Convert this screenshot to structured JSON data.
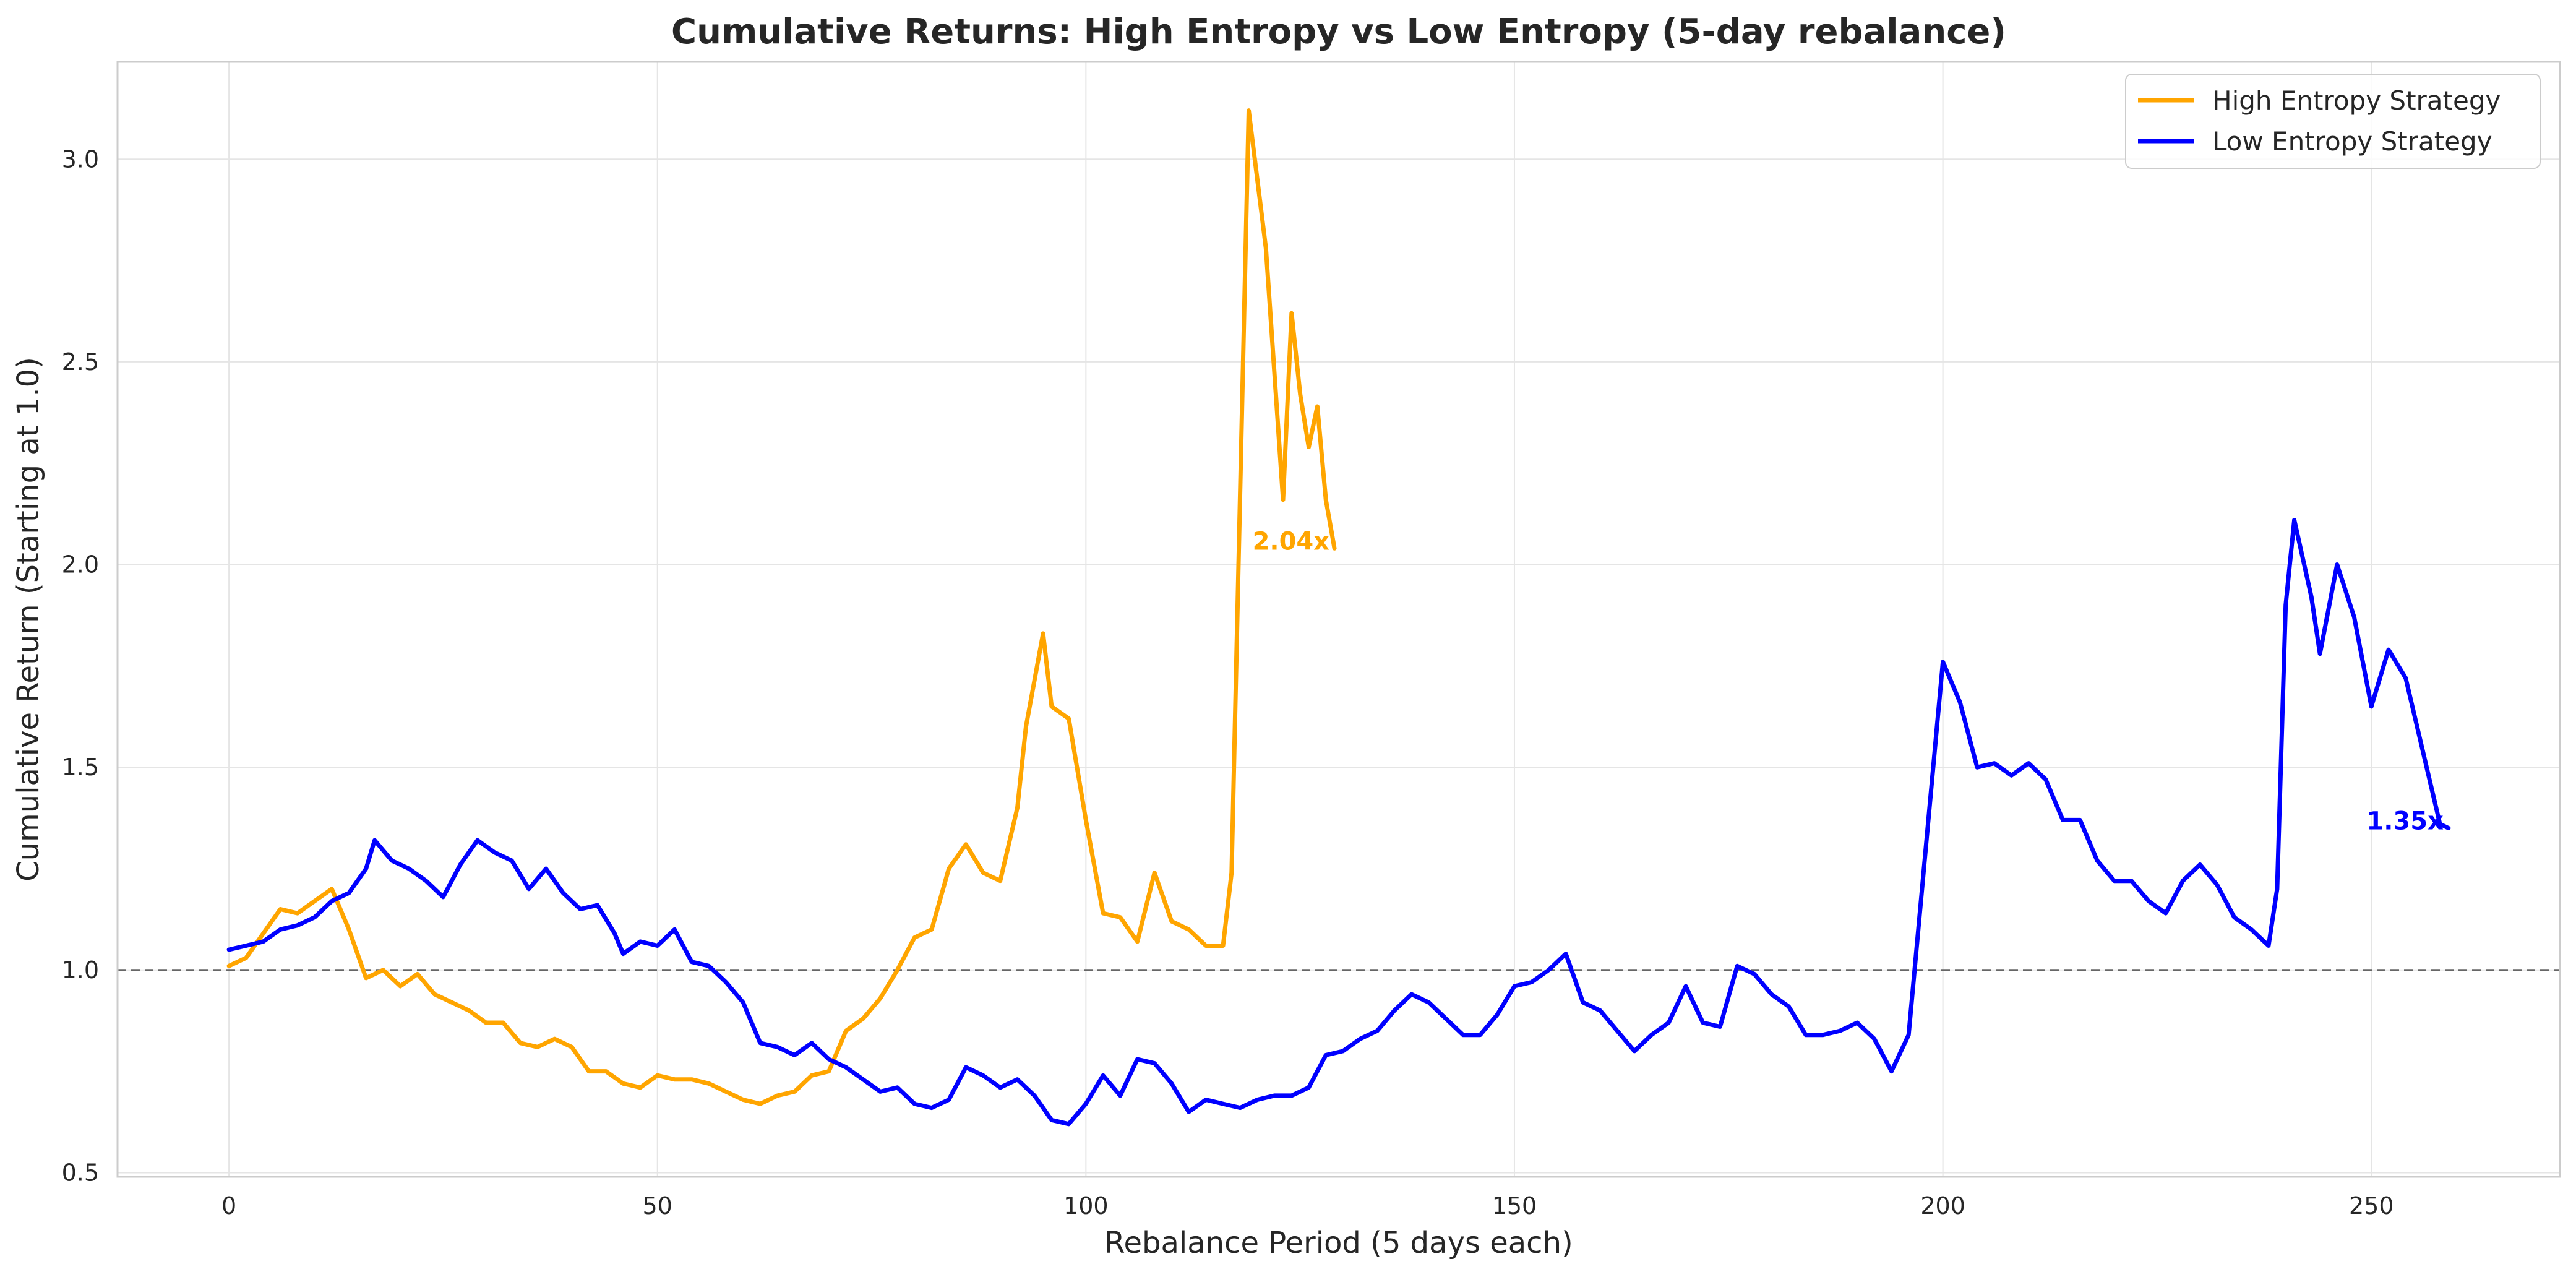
{
  "chart_data": {
    "type": "line",
    "title": "Cumulative Returns: High Entropy vs Low Entropy (5-day rebalance)",
    "xlabel": "Rebalance Period (5 days each)",
    "ylabel": "Cumulative Return (Starting at 1.0)",
    "xlim": [
      -13,
      272
    ],
    "ylim": [
      0.49,
      3.24
    ],
    "xticks": [
      0,
      50,
      100,
      150,
      200,
      250
    ],
    "yticks": [
      0.5,
      1.0,
      1.5,
      2.0,
      2.5,
      3.0
    ],
    "xtick_labels": [
      "0",
      "50",
      "100",
      "150",
      "200",
      "250"
    ],
    "ytick_labels": [
      "0.5",
      "1.0",
      "1.5",
      "2.0",
      "2.5",
      "3.0"
    ],
    "grid": true,
    "legend_position": "top-right",
    "reference_line": {
      "y": 1.0,
      "style": "dashed",
      "color": "#666666"
    },
    "series": [
      {
        "name": "High Entropy Strategy",
        "color": "#FFA500",
        "end_label": "2.04x",
        "points": [
          [
            0,
            1.01
          ],
          [
            2,
            1.03
          ],
          [
            4,
            1.09
          ],
          [
            6,
            1.15
          ],
          [
            8,
            1.14
          ],
          [
            10,
            1.17
          ],
          [
            12,
            1.2
          ],
          [
            14,
            1.1
          ],
          [
            16,
            0.98
          ],
          [
            18,
            1.0
          ],
          [
            20,
            0.96
          ],
          [
            22,
            0.99
          ],
          [
            24,
            0.94
          ],
          [
            26,
            0.92
          ],
          [
            28,
            0.9
          ],
          [
            30,
            0.87
          ],
          [
            32,
            0.87
          ],
          [
            34,
            0.82
          ],
          [
            36,
            0.81
          ],
          [
            38,
            0.83
          ],
          [
            40,
            0.81
          ],
          [
            42,
            0.75
          ],
          [
            44,
            0.75
          ],
          [
            46,
            0.72
          ],
          [
            48,
            0.71
          ],
          [
            50,
            0.74
          ],
          [
            52,
            0.73
          ],
          [
            54,
            0.73
          ],
          [
            56,
            0.72
          ],
          [
            58,
            0.7
          ],
          [
            60,
            0.68
          ],
          [
            62,
            0.67
          ],
          [
            64,
            0.69
          ],
          [
            66,
            0.7
          ],
          [
            68,
            0.74
          ],
          [
            70,
            0.75
          ],
          [
            72,
            0.85
          ],
          [
            74,
            0.88
          ],
          [
            76,
            0.93
          ],
          [
            78,
            1.0
          ],
          [
            80,
            1.08
          ],
          [
            82,
            1.1
          ],
          [
            84,
            1.25
          ],
          [
            86,
            1.31
          ],
          [
            88,
            1.24
          ],
          [
            90,
            1.22
          ],
          [
            92,
            1.4
          ],
          [
            93,
            1.6
          ],
          [
            95,
            1.83
          ],
          [
            96,
            1.65
          ],
          [
            98,
            1.62
          ],
          [
            100,
            1.37
          ],
          [
            102,
            1.14
          ],
          [
            104,
            1.13
          ],
          [
            106,
            1.07
          ],
          [
            108,
            1.24
          ],
          [
            110,
            1.12
          ],
          [
            112,
            1.1
          ],
          [
            114,
            1.06
          ],
          [
            116,
            1.06
          ],
          [
            117,
            1.24
          ],
          [
            119,
            3.12
          ],
          [
            121,
            2.78
          ],
          [
            123,
            2.16
          ],
          [
            124,
            2.62
          ],
          [
            125,
            2.42
          ],
          [
            126,
            2.29
          ],
          [
            127,
            2.39
          ],
          [
            128,
            2.16
          ],
          [
            129,
            2.04
          ]
        ]
      },
      {
        "name": "Low Entropy Strategy",
        "color": "#0000FF",
        "end_label": "1.35x",
        "points": [
          [
            0,
            1.05
          ],
          [
            2,
            1.06
          ],
          [
            4,
            1.07
          ],
          [
            6,
            1.1
          ],
          [
            8,
            1.11
          ],
          [
            10,
            1.13
          ],
          [
            12,
            1.17
          ],
          [
            14,
            1.19
          ],
          [
            16,
            1.25
          ],
          [
            17,
            1.32
          ],
          [
            19,
            1.27
          ],
          [
            21,
            1.25
          ],
          [
            23,
            1.22
          ],
          [
            25,
            1.18
          ],
          [
            27,
            1.26
          ],
          [
            29,
            1.32
          ],
          [
            31,
            1.29
          ],
          [
            33,
            1.27
          ],
          [
            35,
            1.2
          ],
          [
            37,
            1.25
          ],
          [
            39,
            1.19
          ],
          [
            41,
            1.15
          ],
          [
            43,
            1.16
          ],
          [
            45,
            1.09
          ],
          [
            46,
            1.04
          ],
          [
            48,
            1.07
          ],
          [
            50,
            1.06
          ],
          [
            52,
            1.1
          ],
          [
            54,
            1.02
          ],
          [
            56,
            1.01
          ],
          [
            58,
            0.97
          ],
          [
            60,
            0.92
          ],
          [
            62,
            0.82
          ],
          [
            64,
            0.81
          ],
          [
            66,
            0.79
          ],
          [
            68,
            0.82
          ],
          [
            70,
            0.78
          ],
          [
            72,
            0.76
          ],
          [
            74,
            0.73
          ],
          [
            76,
            0.7
          ],
          [
            78,
            0.71
          ],
          [
            80,
            0.67
          ],
          [
            82,
            0.66
          ],
          [
            84,
            0.68
          ],
          [
            86,
            0.76
          ],
          [
            88,
            0.74
          ],
          [
            90,
            0.71
          ],
          [
            92,
            0.73
          ],
          [
            94,
            0.69
          ],
          [
            96,
            0.63
          ],
          [
            98,
            0.62
          ],
          [
            100,
            0.67
          ],
          [
            102,
            0.74
          ],
          [
            104,
            0.69
          ],
          [
            106,
            0.78
          ],
          [
            108,
            0.77
          ],
          [
            110,
            0.72
          ],
          [
            112,
            0.65
          ],
          [
            114,
            0.68
          ],
          [
            116,
            0.67
          ],
          [
            118,
            0.66
          ],
          [
            120,
            0.68
          ],
          [
            122,
            0.69
          ],
          [
            124,
            0.69
          ],
          [
            126,
            0.71
          ],
          [
            128,
            0.79
          ],
          [
            130,
            0.8
          ],
          [
            132,
            0.83
          ],
          [
            134,
            0.85
          ],
          [
            136,
            0.9
          ],
          [
            138,
            0.94
          ],
          [
            140,
            0.92
          ],
          [
            142,
            0.88
          ],
          [
            144,
            0.84
          ],
          [
            146,
            0.84
          ],
          [
            148,
            0.89
          ],
          [
            150,
            0.96
          ],
          [
            152,
            0.97
          ],
          [
            154,
            1.0
          ],
          [
            156,
            1.04
          ],
          [
            158,
            0.92
          ],
          [
            160,
            0.9
          ],
          [
            162,
            0.85
          ],
          [
            164,
            0.8
          ],
          [
            166,
            0.84
          ],
          [
            168,
            0.87
          ],
          [
            170,
            0.96
          ],
          [
            172,
            0.87
          ],
          [
            174,
            0.86
          ],
          [
            176,
            1.01
          ],
          [
            178,
            0.99
          ],
          [
            180,
            0.94
          ],
          [
            182,
            0.91
          ],
          [
            184,
            0.84
          ],
          [
            186,
            0.84
          ],
          [
            188,
            0.85
          ],
          [
            190,
            0.87
          ],
          [
            192,
            0.83
          ],
          [
            194,
            0.75
          ],
          [
            196,
            0.84
          ],
          [
            198,
            1.3
          ],
          [
            200,
            1.76
          ],
          [
            202,
            1.66
          ],
          [
            204,
            1.5
          ],
          [
            206,
            1.51
          ],
          [
            208,
            1.48
          ],
          [
            210,
            1.51
          ],
          [
            212,
            1.47
          ],
          [
            214,
            1.37
          ],
          [
            216,
            1.37
          ],
          [
            218,
            1.27
          ],
          [
            220,
            1.22
          ],
          [
            222,
            1.22
          ],
          [
            224,
            1.17
          ],
          [
            226,
            1.14
          ],
          [
            228,
            1.22
          ],
          [
            230,
            1.26
          ],
          [
            232,
            1.21
          ],
          [
            234,
            1.13
          ],
          [
            236,
            1.1
          ],
          [
            238,
            1.06
          ],
          [
            239,
            1.2
          ],
          [
            240,
            1.9
          ],
          [
            241,
            2.11
          ],
          [
            243,
            1.92
          ],
          [
            244,
            1.78
          ],
          [
            246,
            2.0
          ],
          [
            248,
            1.87
          ],
          [
            250,
            1.65
          ],
          [
            252,
            1.79
          ],
          [
            254,
            1.72
          ],
          [
            256,
            1.54
          ],
          [
            258,
            1.36
          ],
          [
            259,
            1.35
          ]
        ]
      }
    ]
  }
}
